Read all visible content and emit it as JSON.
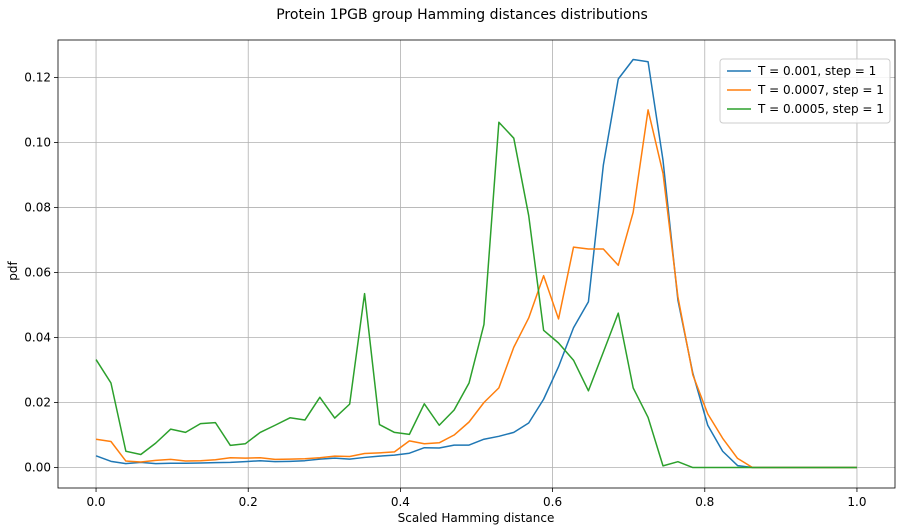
{
  "chart_data": {
    "type": "line",
    "title": "Protein 1PGB group Hamming distances distributions",
    "xlabel": "Scaled Hamming distance",
    "ylabel": "pdf",
    "xlim": [
      -0.05,
      1.05
    ],
    "ylim": [
      -0.0063,
      0.1315
    ],
    "xticks": [
      "0.0",
      "0.2",
      "0.4",
      "0.6",
      "0.8",
      "1.0"
    ],
    "xtick_values": [
      0.0,
      0.2,
      0.4,
      0.6,
      0.8,
      1.0
    ],
    "yticks": [
      "0.00",
      "0.02",
      "0.04",
      "0.06",
      "0.08",
      "0.10",
      "0.12"
    ],
    "ytick_values": [
      0.0,
      0.02,
      0.04,
      0.06,
      0.08,
      0.1,
      0.12
    ],
    "grid": true,
    "legend_position": "top-right",
    "x": [
      0.0,
      0.0196,
      0.0392,
      0.0588,
      0.0784,
      0.098,
      0.1176,
      0.1373,
      0.1569,
      0.1765,
      0.1961,
      0.2157,
      0.2353,
      0.2549,
      0.2745,
      0.2941,
      0.3137,
      0.3333,
      0.3529,
      0.3725,
      0.3922,
      0.4118,
      0.4314,
      0.451,
      0.4706,
      0.4902,
      0.5098,
      0.5294,
      0.549,
      0.5686,
      0.5882,
      0.6078,
      0.6275,
      0.6471,
      0.6667,
      0.6863,
      0.7059,
      0.7255,
      0.7451,
      0.7647,
      0.7843,
      0.8039,
      0.8235,
      0.8431,
      0.8627,
      0.8824,
      0.902,
      0.9216,
      0.9412,
      0.9608,
      0.9804,
      1.0
    ],
    "series": [
      {
        "name": "T = 0.001, step = 1",
        "color": "#1f77b4",
        "values": [
          0.0036,
          0.0019,
          0.0012,
          0.0016,
          0.0012,
          0.0013,
          0.0013,
          0.0014,
          0.0015,
          0.0016,
          0.0018,
          0.0021,
          0.0018,
          0.0019,
          0.0021,
          0.0026,
          0.0029,
          0.0026,
          0.0031,
          0.0035,
          0.0038,
          0.0044,
          0.0061,
          0.006,
          0.0069,
          0.0069,
          0.0087,
          0.0096,
          0.0108,
          0.0137,
          0.021,
          0.031,
          0.043,
          0.051,
          0.093,
          0.1195,
          0.1255,
          0.1248,
          0.0945,
          0.0515,
          0.029,
          0.013,
          0.005,
          0.0006,
          0.0,
          0.0,
          0.0,
          0.0,
          0.0,
          0.0,
          0.0,
          0.0
        ]
      },
      {
        "name": "T = 0.0007, step = 1",
        "color": "#ff7f0e",
        "values": [
          0.0087,
          0.008,
          0.002,
          0.0017,
          0.0022,
          0.0025,
          0.002,
          0.0021,
          0.0024,
          0.003,
          0.0029,
          0.003,
          0.0025,
          0.0026,
          0.0027,
          0.003,
          0.0035,
          0.0034,
          0.0043,
          0.0045,
          0.0048,
          0.0082,
          0.0073,
          0.0076,
          0.01,
          0.014,
          0.02,
          0.0245,
          0.037,
          0.046,
          0.059,
          0.0457,
          0.0678,
          0.0672,
          0.0672,
          0.0622,
          0.0785,
          0.11,
          0.0905,
          0.0525,
          0.0285,
          0.0165,
          0.009,
          0.0028,
          0.0,
          0.0,
          0.0,
          0.0,
          0.0,
          0.0,
          0.0,
          0.0
        ]
      },
      {
        "name": "T = 0.0005, step = 1",
        "color": "#2ca02c",
        "values": [
          0.0332,
          0.026,
          0.005,
          0.004,
          0.0075,
          0.0118,
          0.0108,
          0.0135,
          0.0138,
          0.0068,
          0.0073,
          0.0108,
          0.013,
          0.0153,
          0.0146,
          0.0216,
          0.0152,
          0.0195,
          0.0535,
          0.0132,
          0.0108,
          0.0102,
          0.0196,
          0.013,
          0.0177,
          0.026,
          0.044,
          0.1062,
          0.1013,
          0.0775,
          0.0422,
          0.0383,
          0.033,
          0.0236,
          0.0355,
          0.0475,
          0.0245,
          0.0154,
          0.0005,
          0.0018,
          0.0,
          0.0,
          0.0,
          0.0,
          0.0,
          0.0,
          0.0,
          0.0,
          0.0,
          0.0,
          0.0,
          0.0
        ]
      }
    ]
  }
}
